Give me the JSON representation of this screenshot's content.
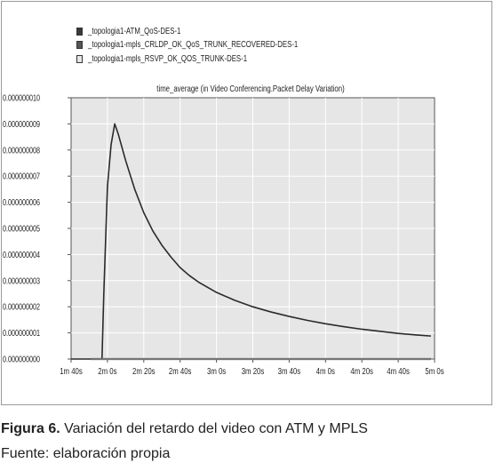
{
  "chart_data": {
    "type": "line",
    "title": "time_average (in Video Conferencing.Packet Delay Variation)",
    "legend_position": "top-left",
    "grid": true,
    "x_ticks": [
      "1m 40s",
      "2m 0s",
      "2m 20s",
      "2m 40s",
      "3m 0s",
      "3m 20s",
      "3m 40s",
      "4m 0s",
      "4m 20s",
      "4m 40s",
      "5m 0s"
    ],
    "xlim": [
      100,
      300
    ],
    "y_ticks": [
      "0.000000000",
      "0.000000001",
      "0.000000002",
      "0.000000003",
      "0.000000004",
      "0.000000005",
      "0.000000006",
      "0.000000007",
      "0.000000008",
      "0.000000009",
      "0.000000010"
    ],
    "ylim": [
      0,
      1e-08
    ],
    "series": [
      {
        "name": "_topologia1-ATM_QoS-DES-1",
        "color": "#3a3a3a",
        "points": [
          [
            111,
            0
          ],
          [
            115,
            0
          ],
          [
            120,
            0
          ],
          [
            140,
            0
          ],
          [
            160,
            0
          ],
          [
            180,
            0
          ],
          [
            200,
            0
          ],
          [
            220,
            0
          ],
          [
            240,
            0
          ],
          [
            260,
            0
          ],
          [
            280,
            0
          ],
          [
            298,
            0
          ]
        ]
      },
      {
        "name": "_topologia1-mpls_CRLDP_OK_QoS_TRUNK_RECOVERED-DES-1",
        "color": "#2a2a2a",
        "points": [
          [
            100,
            0
          ],
          [
            117,
            0
          ],
          [
            118,
            2.5e-09
          ],
          [
            120,
            6.6e-09
          ],
          [
            122,
            8.2e-09
          ],
          [
            124,
            9e-09
          ],
          [
            126,
            8.6e-09
          ],
          [
            130,
            7.6e-09
          ],
          [
            135,
            6.5e-09
          ],
          [
            140,
            5.6e-09
          ],
          [
            145,
            4.9e-09
          ],
          [
            150,
            4.35e-09
          ],
          [
            155,
            3.9e-09
          ],
          [
            160,
            3.5e-09
          ],
          [
            165,
            3.2e-09
          ],
          [
            170,
            2.95e-09
          ],
          [
            180,
            2.55e-09
          ],
          [
            190,
            2.25e-09
          ],
          [
            200,
            2e-09
          ],
          [
            210,
            1.8e-09
          ],
          [
            220,
            1.63e-09
          ],
          [
            230,
            1.48e-09
          ],
          [
            240,
            1.35e-09
          ],
          [
            250,
            1.24e-09
          ],
          [
            260,
            1.14e-09
          ],
          [
            270,
            1.06e-09
          ],
          [
            280,
            9.8e-10
          ],
          [
            290,
            9.2e-10
          ],
          [
            298,
            8.8e-10
          ]
        ]
      },
      {
        "name": "_topologia1-mpls_RSVP_OK_QOS_TRUNK-DES-1",
        "color": "#9a9a9a",
        "points": [
          [
            111,
            0
          ],
          [
            140,
            0
          ],
          [
            180,
            0
          ],
          [
            220,
            0
          ],
          [
            260,
            0
          ],
          [
            298,
            0
          ]
        ]
      }
    ]
  },
  "caption": {
    "figure_label": "Figura 6.",
    "figure_text": " Variación del retardo del video con ATM y MPLS",
    "source": "Fuente: elaboración propia"
  }
}
